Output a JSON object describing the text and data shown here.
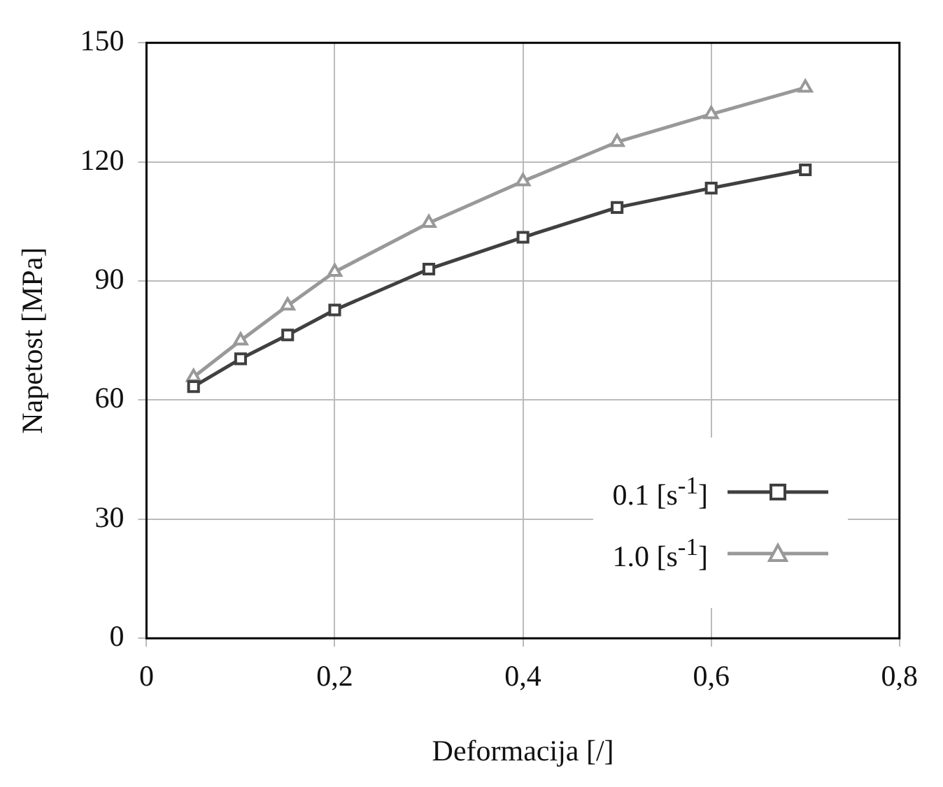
{
  "chart_data": {
    "type": "line",
    "xlabel": "Deformacija [/]",
    "ylabel": "Napetost [MPa]",
    "xlim": [
      0,
      0.8
    ],
    "xticks": [
      0,
      {
        "value": 0.2,
        "label": "0,2"
      },
      {
        "value": 0.4,
        "label": "0,4"
      },
      {
        "value": 0.6,
        "label": "0,6"
      },
      {
        "value": 0.8,
        "label": "0,8"
      }
    ],
    "ylim": [
      0,
      150
    ],
    "yticks": [
      0,
      30,
      60,
      90,
      120,
      150
    ],
    "grid": true,
    "legend": "bottom right",
    "line_style": "solid",
    "x": [
      0.05,
      0.1,
      0.15,
      0.2,
      0.3,
      0.4,
      0.5,
      0.6,
      0.7
    ],
    "series": [
      {
        "name": "0.1 [s$^{-1}$]",
        "color": "#404040",
        "marker": "square",
        "values": [
          63.4,
          70.4,
          76.4,
          82.7,
          93,
          101,
          108.5,
          113.4,
          118
        ]
      },
      {
        "name": "1.0 [s$^{-1}$]",
        "color": "#999999",
        "marker": "triangle",
        "values": [
          65.8,
          75,
          83.8,
          92.3,
          104.6,
          115.1,
          125,
          132,
          138.7
        ]
      }
    ]
  }
}
